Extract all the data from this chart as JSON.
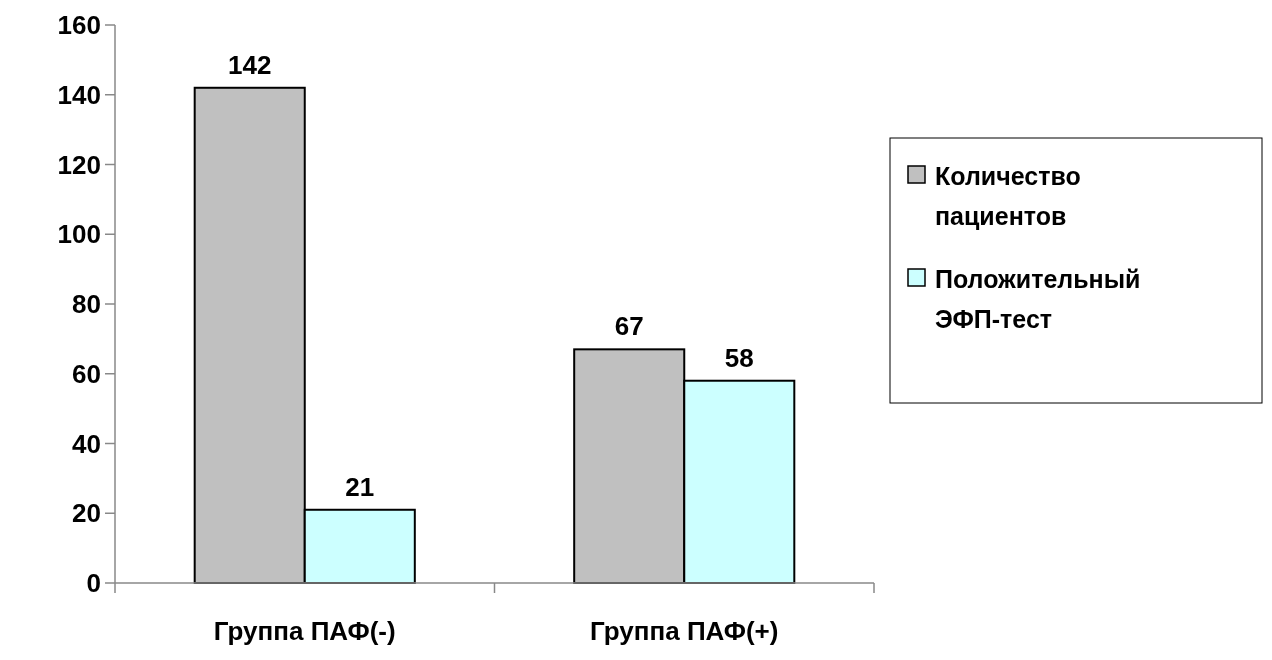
{
  "chart_data": {
    "type": "bar",
    "categories": [
      "Группа ПАФ(-)",
      "Группа ПАФ(+)"
    ],
    "series": [
      {
        "name": "Количество пациентов",
        "color": "#c0c0c0",
        "values": [
          142,
          67
        ]
      },
      {
        "name": "Положительный ЭФП-тест",
        "color": "#ccffff",
        "values": [
          21,
          58
        ]
      }
    ],
    "ylim": [
      0,
      160
    ],
    "yticks": [
      0,
      20,
      40,
      60,
      80,
      100,
      120,
      140,
      160
    ],
    "data_labels": true,
    "grid": false,
    "legend": "right"
  }
}
